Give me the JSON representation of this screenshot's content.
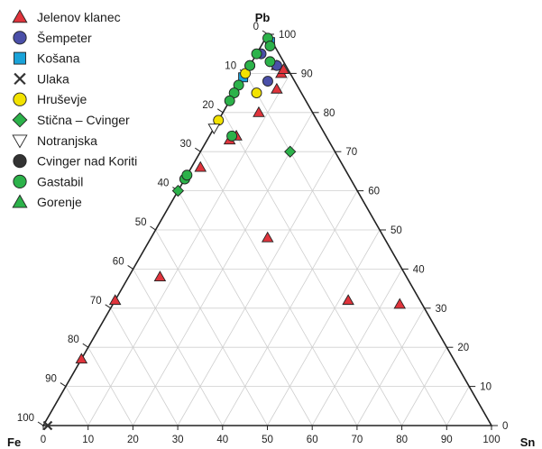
{
  "chart_data": {
    "type": "ternary",
    "vertices": {
      "top": "Pb",
      "left": "Fe",
      "right": "Sn"
    },
    "ticks": {
      "bottom": [
        "0",
        "10",
        "20",
        "30",
        "40",
        "50",
        "60",
        "70",
        "80",
        "90",
        "100"
      ],
      "right": [
        "0",
        "10",
        "20",
        "30",
        "40",
        "50",
        "60",
        "70",
        "80",
        "90",
        "100"
      ],
      "left": [
        "0",
        "10",
        "20",
        "30",
        "40",
        "50",
        "60",
        "70",
        "80",
        "90",
        "100"
      ]
    },
    "grid": true,
    "legend_placement": "top-left",
    "series": [
      {
        "name": "Jelenov klanec",
        "marker": "triangle-up",
        "color": "#e0343c",
        "points": [
          {
            "pb": 92,
            "sn": 6,
            "fe": 2
          },
          {
            "pb": 90,
            "sn": 8,
            "fe": 2
          },
          {
            "pb": 91,
            "sn": 8,
            "fe": 1
          },
          {
            "pb": 86,
            "sn": 9,
            "fe": 5
          },
          {
            "pb": 80,
            "sn": 8,
            "fe": 12
          },
          {
            "pb": 74,
            "sn": 6,
            "fe": 20
          },
          {
            "pb": 73,
            "sn": 5,
            "fe": 22
          },
          {
            "pb": 66,
            "sn": 2,
            "fe": 32
          },
          {
            "pb": 48,
            "sn": 26,
            "fe": 26
          },
          {
            "pb": 38,
            "sn": 7,
            "fe": 55
          },
          {
            "pb": 32,
            "sn": 52,
            "fe": 16
          },
          {
            "pb": 31,
            "sn": 64,
            "fe": 5
          },
          {
            "pb": 32,
            "sn": 0,
            "fe": 68
          },
          {
            "pb": 17,
            "sn": 0,
            "fe": 83
          }
        ]
      },
      {
        "name": "Šempeter",
        "marker": "circle",
        "color": "#4a4fa8",
        "points": [
          {
            "pb": 95,
            "sn": 1,
            "fe": 4
          },
          {
            "pb": 88,
            "sn": 6,
            "fe": 6
          },
          {
            "pb": 92,
            "sn": 6,
            "fe": 2
          }
        ]
      },
      {
        "name": "Košana",
        "marker": "square",
        "color": "#1aa3d9",
        "points": [
          {
            "pb": 98,
            "sn": 1.5,
            "fe": 0.5
          },
          {
            "pb": 89,
            "sn": 0,
            "fe": 11
          }
        ]
      },
      {
        "name": "Ulaka",
        "marker": "x",
        "color": "#333333",
        "points": [
          {
            "pb": 0,
            "sn": 1,
            "fe": 99
          }
        ]
      },
      {
        "name": "Hruševje",
        "marker": "circle",
        "color": "#f2e200",
        "points": [
          {
            "pb": 90,
            "sn": 0,
            "fe": 10
          },
          {
            "pb": 85,
            "sn": 5,
            "fe": 10
          },
          {
            "pb": 78,
            "sn": 0,
            "fe": 22
          }
        ]
      },
      {
        "name": "Stična – Cvinger",
        "marker": "diamond",
        "color": "#2cb24a",
        "points": [
          {
            "pb": 70,
            "sn": 20,
            "fe": 10
          },
          {
            "pb": 60,
            "sn": 0,
            "fe": 40
          }
        ]
      },
      {
        "name": "Notranjska",
        "marker": "triangle-down",
        "color": "#ffffff",
        "points": [
          {
            "pb": 76,
            "sn": 0,
            "fe": 24
          }
        ]
      },
      {
        "name": "Cvinger nad Koriti",
        "marker": "circle",
        "color": "#333333",
        "points": [
          {
            "pb": 92,
            "sn": 0,
            "fe": 8
          }
        ]
      },
      {
        "name": "Gastabil",
        "marker": "circle",
        "color": "#2cb24a",
        "points": [
          {
            "pb": 99,
            "sn": 0.5,
            "fe": 0.5
          },
          {
            "pb": 97,
            "sn": 2,
            "fe": 1
          },
          {
            "pb": 95,
            "sn": 0,
            "fe": 5
          },
          {
            "pb": 93,
            "sn": 4,
            "fe": 3
          },
          {
            "pb": 92,
            "sn": 0,
            "fe": 8
          },
          {
            "pb": 87,
            "sn": 0,
            "fe": 13
          },
          {
            "pb": 85,
            "sn": 0,
            "fe": 15
          },
          {
            "pb": 83,
            "sn": 0,
            "fe": 17
          },
          {
            "pb": 74,
            "sn": 5,
            "fe": 21
          },
          {
            "pb": 63,
            "sn": 0,
            "fe": 37
          },
          {
            "pb": 64,
            "sn": 0,
            "fe": 36
          }
        ]
      },
      {
        "name": "Gorenje",
        "marker": "triangle-up",
        "color": "#2cb24a",
        "points": []
      }
    ]
  }
}
